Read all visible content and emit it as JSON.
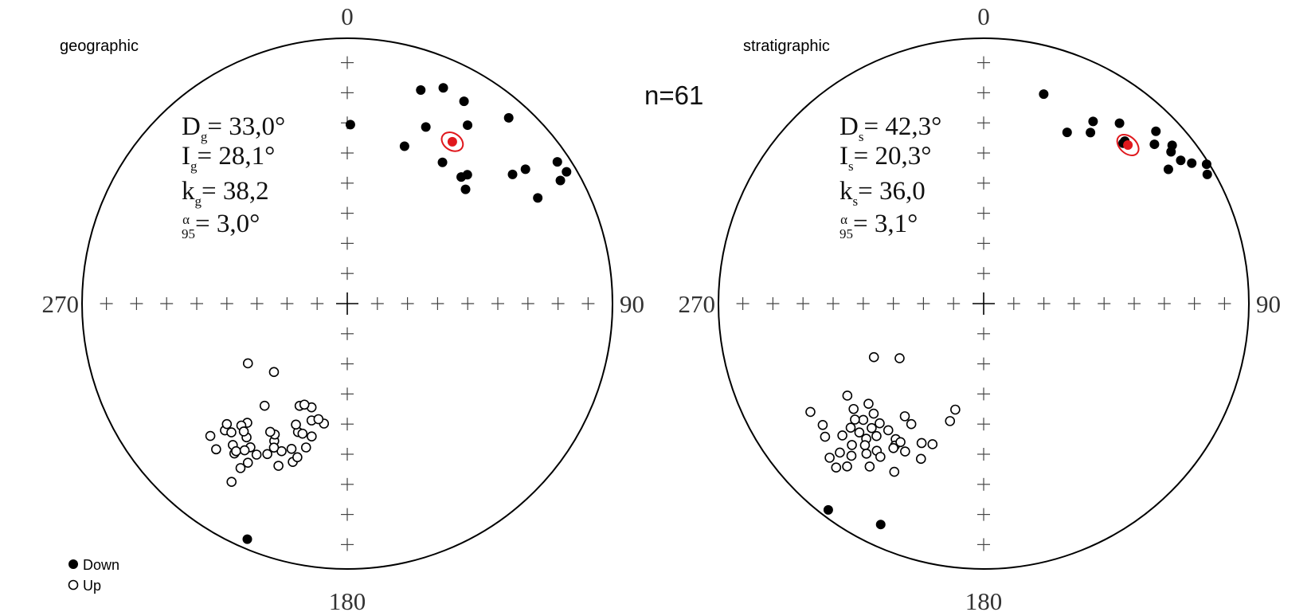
{
  "n_label": "n=61",
  "legend": [
    {
      "label": "Down",
      "filled": true
    },
    {
      "label": "Up",
      "filled": false
    }
  ],
  "colors": {
    "mean": "#e0181d",
    "confidence_ellipse": "#e0181d",
    "points": "#000000"
  },
  "chart_data": [
    {
      "type": "scatter",
      "projection": "equal-area stereonet",
      "title": "geographic",
      "direction_labels": {
        "north": "0",
        "east": "90",
        "south": "180",
        "west": "270"
      },
      "stats": {
        "D": {
          "main": "D",
          "sub": "g",
          "value": "= 33,0°"
        },
        "I": {
          "main": "I",
          "sub": "g",
          "value": "= 28,1°"
        },
        "k": {
          "main": "k",
          "sub": "g",
          "value": "= 38,2"
        },
        "a95": {
          "main": "α",
          "sub": "95",
          "value": "= 3,0°"
        }
      },
      "mean": {
        "dec": 33.0,
        "inc": 28.1,
        "a95": 3.0
      },
      "down": [
        {
          "dec": 1,
          "inc": 33
        },
        {
          "dec": 20,
          "inc": 37
        },
        {
          "dec": 24,
          "inc": 28
        },
        {
          "dec": 19,
          "inc": 16
        },
        {
          "dec": 24,
          "inc": 12
        },
        {
          "dec": 34,
          "inc": 36
        },
        {
          "dec": 34,
          "inc": 20
        },
        {
          "dec": 30,
          "inc": 13
        },
        {
          "dec": 41,
          "inc": 8
        },
        {
          "dec": 42,
          "inc": 36
        },
        {
          "dec": 46,
          "inc": 38
        },
        {
          "dec": 43,
          "inc": 34
        },
        {
          "dec": 52,
          "inc": 22
        },
        {
          "dec": 61,
          "inc": 19
        },
        {
          "dec": 53,
          "inc": 17
        },
        {
          "dec": 56,
          "inc": 5
        },
        {
          "dec": 60,
          "inc": 8
        },
        {
          "dec": 59,
          "inc": 4
        },
        {
          "dec": 203,
          "inc": 4
        }
      ],
      "up": [
        {
          "dec": 220,
          "inc": 41
        },
        {
          "dec": 219,
          "inc": 49
        },
        {
          "dec": 222,
          "inc": 27
        },
        {
          "dec": 219,
          "inc": 32
        },
        {
          "dec": 208,
          "inc": 41
        },
        {
          "dec": 204,
          "inc": 39
        },
        {
          "dec": 199,
          "inc": 37
        },
        {
          "dec": 201,
          "inc": 47
        },
        {
          "dec": 203,
          "inc": 49
        },
        {
          "dec": 209,
          "inc": 43
        },
        {
          "dec": 214,
          "inc": 35
        },
        {
          "dec": 217,
          "inc": 30
        },
        {
          "dec": 217,
          "inc": 37
        },
        {
          "dec": 213,
          "inc": 27
        },
        {
          "dec": 224,
          "inc": 34
        },
        {
          "dec": 226,
          "inc": 29
        },
        {
          "dec": 205,
          "inc": 55
        },
        {
          "dec": 217,
          "inc": 31
        },
        {
          "dec": 221,
          "inc": 39
        },
        {
          "dec": 225,
          "inc": 36
        },
        {
          "dec": 222,
          "inc": 35
        },
        {
          "dec": 219,
          "inc": 38
        },
        {
          "dec": 215,
          "inc": 33
        },
        {
          "dec": 212,
          "inc": 30
        },
        {
          "dec": 211,
          "inc": 34
        },
        {
          "dec": 196,
          "inc": 43
        },
        {
          "dec": 199,
          "inc": 56
        },
        {
          "dec": 191,
          "inc": 52
        },
        {
          "dec": 197,
          "inc": 52
        },
        {
          "dec": 199,
          "inc": 47
        },
        {
          "dec": 194,
          "inc": 53
        },
        {
          "dec": 195,
          "inc": 47
        },
        {
          "dec": 203,
          "inc": 56
        },
        {
          "dec": 239,
          "inc": 54
        },
        {
          "dec": 227,
          "inc": 59
        },
        {
          "dec": 213,
          "inc": 21
        },
        {
          "dec": 208,
          "inc": 36
        },
        {
          "dec": 203,
          "inc": 34
        },
        {
          "dec": 211,
          "inc": 43
        },
        {
          "dec": 201,
          "inc": 41
        },
        {
          "dec": 207,
          "inc": 39
        },
        {
          "dec": 198,
          "inc": 39
        }
      ]
    },
    {
      "type": "scatter",
      "projection": "equal-area stereonet",
      "title": "stratigraphic",
      "direction_labels": {
        "north": "0",
        "east": "90",
        "south": "180",
        "west": "270"
      },
      "stats": {
        "D": {
          "main": "D",
          "sub": "s",
          "value": "= 42,3°"
        },
        "I": {
          "main": "I",
          "sub": "s",
          "value": "=  20,3°"
        },
        "k": {
          "main": "k",
          "sub": "s",
          "value": "= 36,0"
        },
        "a95": {
          "main": "α",
          "sub": "95",
          "value": "= 3,1°"
        }
      },
      "mean": {
        "dec": 42.3,
        "inc": 20.3,
        "a95": 3.1
      },
      "down": [
        {
          "dec": 16,
          "inc": 19
        },
        {
          "dec": 32,
          "inc": 25
        },
        {
          "dec": 26,
          "inc": 29
        },
        {
          "dec": 31,
          "inc": 21
        },
        {
          "dec": 37,
          "inc": 16
        },
        {
          "dec": 41,
          "inc": 21
        },
        {
          "dec": 41,
          "inc": 20
        },
        {
          "dec": 47,
          "inc": 13
        },
        {
          "dec": 58,
          "inc": 1
        },
        {
          "dec": 54,
          "inc": 15
        },
        {
          "dec": 54,
          "inc": 9
        },
        {
          "dec": 56,
          "inc": 6
        },
        {
          "dec": 60,
          "inc": 3
        },
        {
          "dec": 50,
          "inc": 8
        },
        {
          "dec": 51,
          "inc": 10
        },
        {
          "dec": 45,
          "inc": 9
        },
        {
          "dec": 217,
          "inc": 3
        },
        {
          "dec": 205,
          "inc": 9
        }
      ],
      "up": [
        {
          "dec": 226,
          "inc": 37
        },
        {
          "dec": 238,
          "inc": 24
        },
        {
          "dec": 231,
          "inc": 37
        },
        {
          "dec": 228,
          "inc": 35
        },
        {
          "dec": 233,
          "inc": 25
        },
        {
          "dec": 230,
          "inc": 23
        },
        {
          "dec": 227,
          "inc": 32
        },
        {
          "dec": 221,
          "inc": 40
        },
        {
          "dec": 225,
          "inc": 41
        },
        {
          "dec": 222,
          "inc": 37
        },
        {
          "dec": 224,
          "inc": 33
        },
        {
          "dec": 221,
          "inc": 33
        },
        {
          "dec": 220,
          "inc": 31
        },
        {
          "dec": 223,
          "inc": 28
        },
        {
          "dec": 221,
          "inc": 25
        },
        {
          "dec": 236,
          "inc": 38
        },
        {
          "dec": 229,
          "inc": 42
        },
        {
          "dec": 213,
          "inc": 39
        },
        {
          "dec": 211,
          "inc": 46
        },
        {
          "dec": 215,
          "inc": 47
        },
        {
          "dec": 219,
          "inc": 36
        },
        {
          "dec": 217,
          "inc": 40
        },
        {
          "dec": 225,
          "inc": 19
        },
        {
          "dec": 222,
          "inc": 18
        },
        {
          "dec": 220,
          "inc": 21
        },
        {
          "dec": 224,
          "inc": 23
        },
        {
          "dec": 227,
          "inc": 28
        },
        {
          "dec": 218,
          "inc": 29
        },
        {
          "dec": 215,
          "inc": 26
        },
        {
          "dec": 216,
          "inc": 32
        },
        {
          "dec": 212,
          "inc": 37
        },
        {
          "dec": 211,
          "inc": 39
        },
        {
          "dec": 208,
          "inc": 37
        },
        {
          "dec": 202,
          "inc": 37
        },
        {
          "dec": 200,
          "inc": 43
        },
        {
          "dec": 196,
          "inc": 52
        },
        {
          "dec": 195,
          "inc": 56
        },
        {
          "dec": 244,
          "inc": 52
        },
        {
          "dec": 237,
          "inc": 59
        },
        {
          "dec": 212,
          "inc": 36
        },
        {
          "dec": 214,
          "inc": 31
        },
        {
          "dec": 208,
          "inc": 29
        },
        {
          "dec": 204,
          "inc": 42
        }
      ]
    }
  ]
}
